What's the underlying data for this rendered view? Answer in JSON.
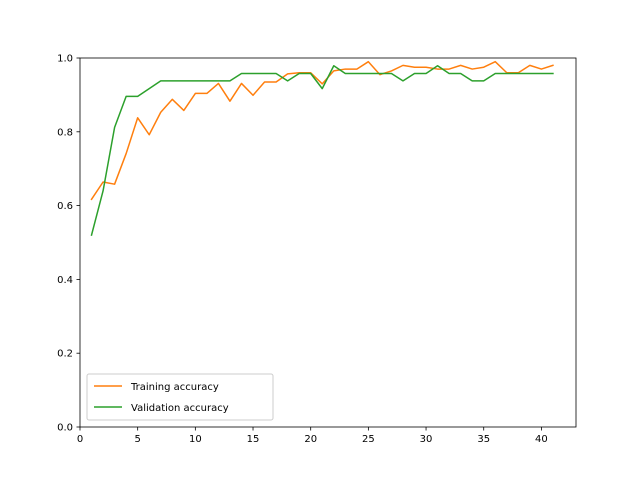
{
  "chart_data": {
    "type": "line",
    "title": "",
    "xlabel": "",
    "ylabel": "",
    "xlim": [
      -0.0,
      43.0
    ],
    "ylim": [
      0.0,
      1.0
    ],
    "xticks": [
      0,
      5,
      10,
      15,
      20,
      25,
      30,
      35,
      40
    ],
    "yticks": [
      0.0,
      0.2,
      0.4,
      0.6,
      0.8,
      1.0
    ],
    "xtick_labels": [
      "0",
      "5",
      "10",
      "15",
      "20",
      "25",
      "30",
      "35",
      "40"
    ],
    "ytick_labels": [
      "0.0",
      "0.2",
      "0.4",
      "0.6",
      "0.8",
      "1.0"
    ],
    "grid": false,
    "legend_position": "lower-left",
    "x": [
      1,
      2,
      3,
      4,
      5,
      6,
      7,
      8,
      9,
      10,
      11,
      12,
      13,
      14,
      15,
      16,
      17,
      18,
      19,
      20,
      21,
      22,
      23,
      24,
      25,
      26,
      27,
      28,
      29,
      30,
      31,
      32,
      33,
      34,
      35,
      36,
      37,
      38,
      39,
      40,
      41
    ],
    "series": [
      {
        "name": "Training accuracy",
        "color": "#ff7f0e",
        "values": [
          0.617,
          0.664,
          0.658,
          0.741,
          0.838,
          0.792,
          0.853,
          0.888,
          0.858,
          0.904,
          0.904,
          0.931,
          0.883,
          0.931,
          0.899,
          0.935,
          0.935,
          0.957,
          0.96,
          0.96,
          0.93,
          0.965,
          0.97,
          0.97,
          0.99,
          0.955,
          0.965,
          0.98,
          0.975,
          0.975,
          0.97,
          0.97,
          0.98,
          0.97,
          0.975,
          0.99,
          0.96,
          0.96,
          0.98,
          0.97,
          0.98
        ]
      },
      {
        "name": "Validation accuracy",
        "color": "#2ca02c",
        "values": [
          0.52,
          0.64,
          0.812,
          0.896,
          0.896,
          0.917,
          0.938,
          0.938,
          0.938,
          0.938,
          0.938,
          0.938,
          0.938,
          0.958,
          0.958,
          0.958,
          0.958,
          0.938,
          0.958,
          0.958,
          0.917,
          0.979,
          0.958,
          0.958,
          0.958,
          0.958,
          0.958,
          0.938,
          0.958,
          0.958,
          0.979,
          0.958,
          0.958,
          0.938,
          0.938,
          0.958,
          0.958,
          0.958,
          0.958,
          0.958,
          0.958
        ]
      }
    ]
  }
}
